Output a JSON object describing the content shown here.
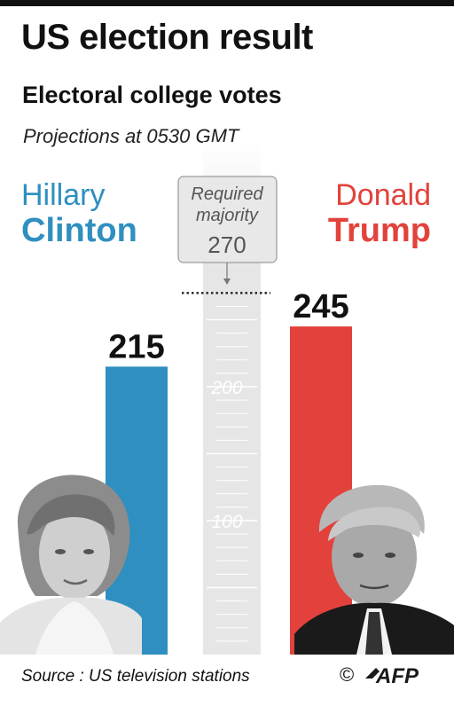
{
  "title": "US election result",
  "subtitle": "Electoral college votes",
  "note": "Projections at 0530 GMT",
  "candidates": {
    "clinton": {
      "first": "Hillary",
      "last": "Clinton"
    },
    "trump": {
      "first": "Donald",
      "last": "Trump"
    }
  },
  "majority": {
    "line1": "Required",
    "line2": "majority",
    "value": "270"
  },
  "ticks": [
    "200",
    "100"
  ],
  "source": "Source : US television stations",
  "copyright": "©",
  "agency": "AFP",
  "colors": {
    "clinton": "#2f8fc0",
    "trump": "#e2423b",
    "scale": "#e6e6e6"
  },
  "chart_data": {
    "type": "bar",
    "categories": [
      "Hillary Clinton",
      "Donald Trump"
    ],
    "values": [
      215,
      245
    ],
    "title": "Electoral college votes",
    "xlabel": "",
    "ylabel": "",
    "ylim": [
      0,
      300
    ],
    "reference_line": 270
  }
}
